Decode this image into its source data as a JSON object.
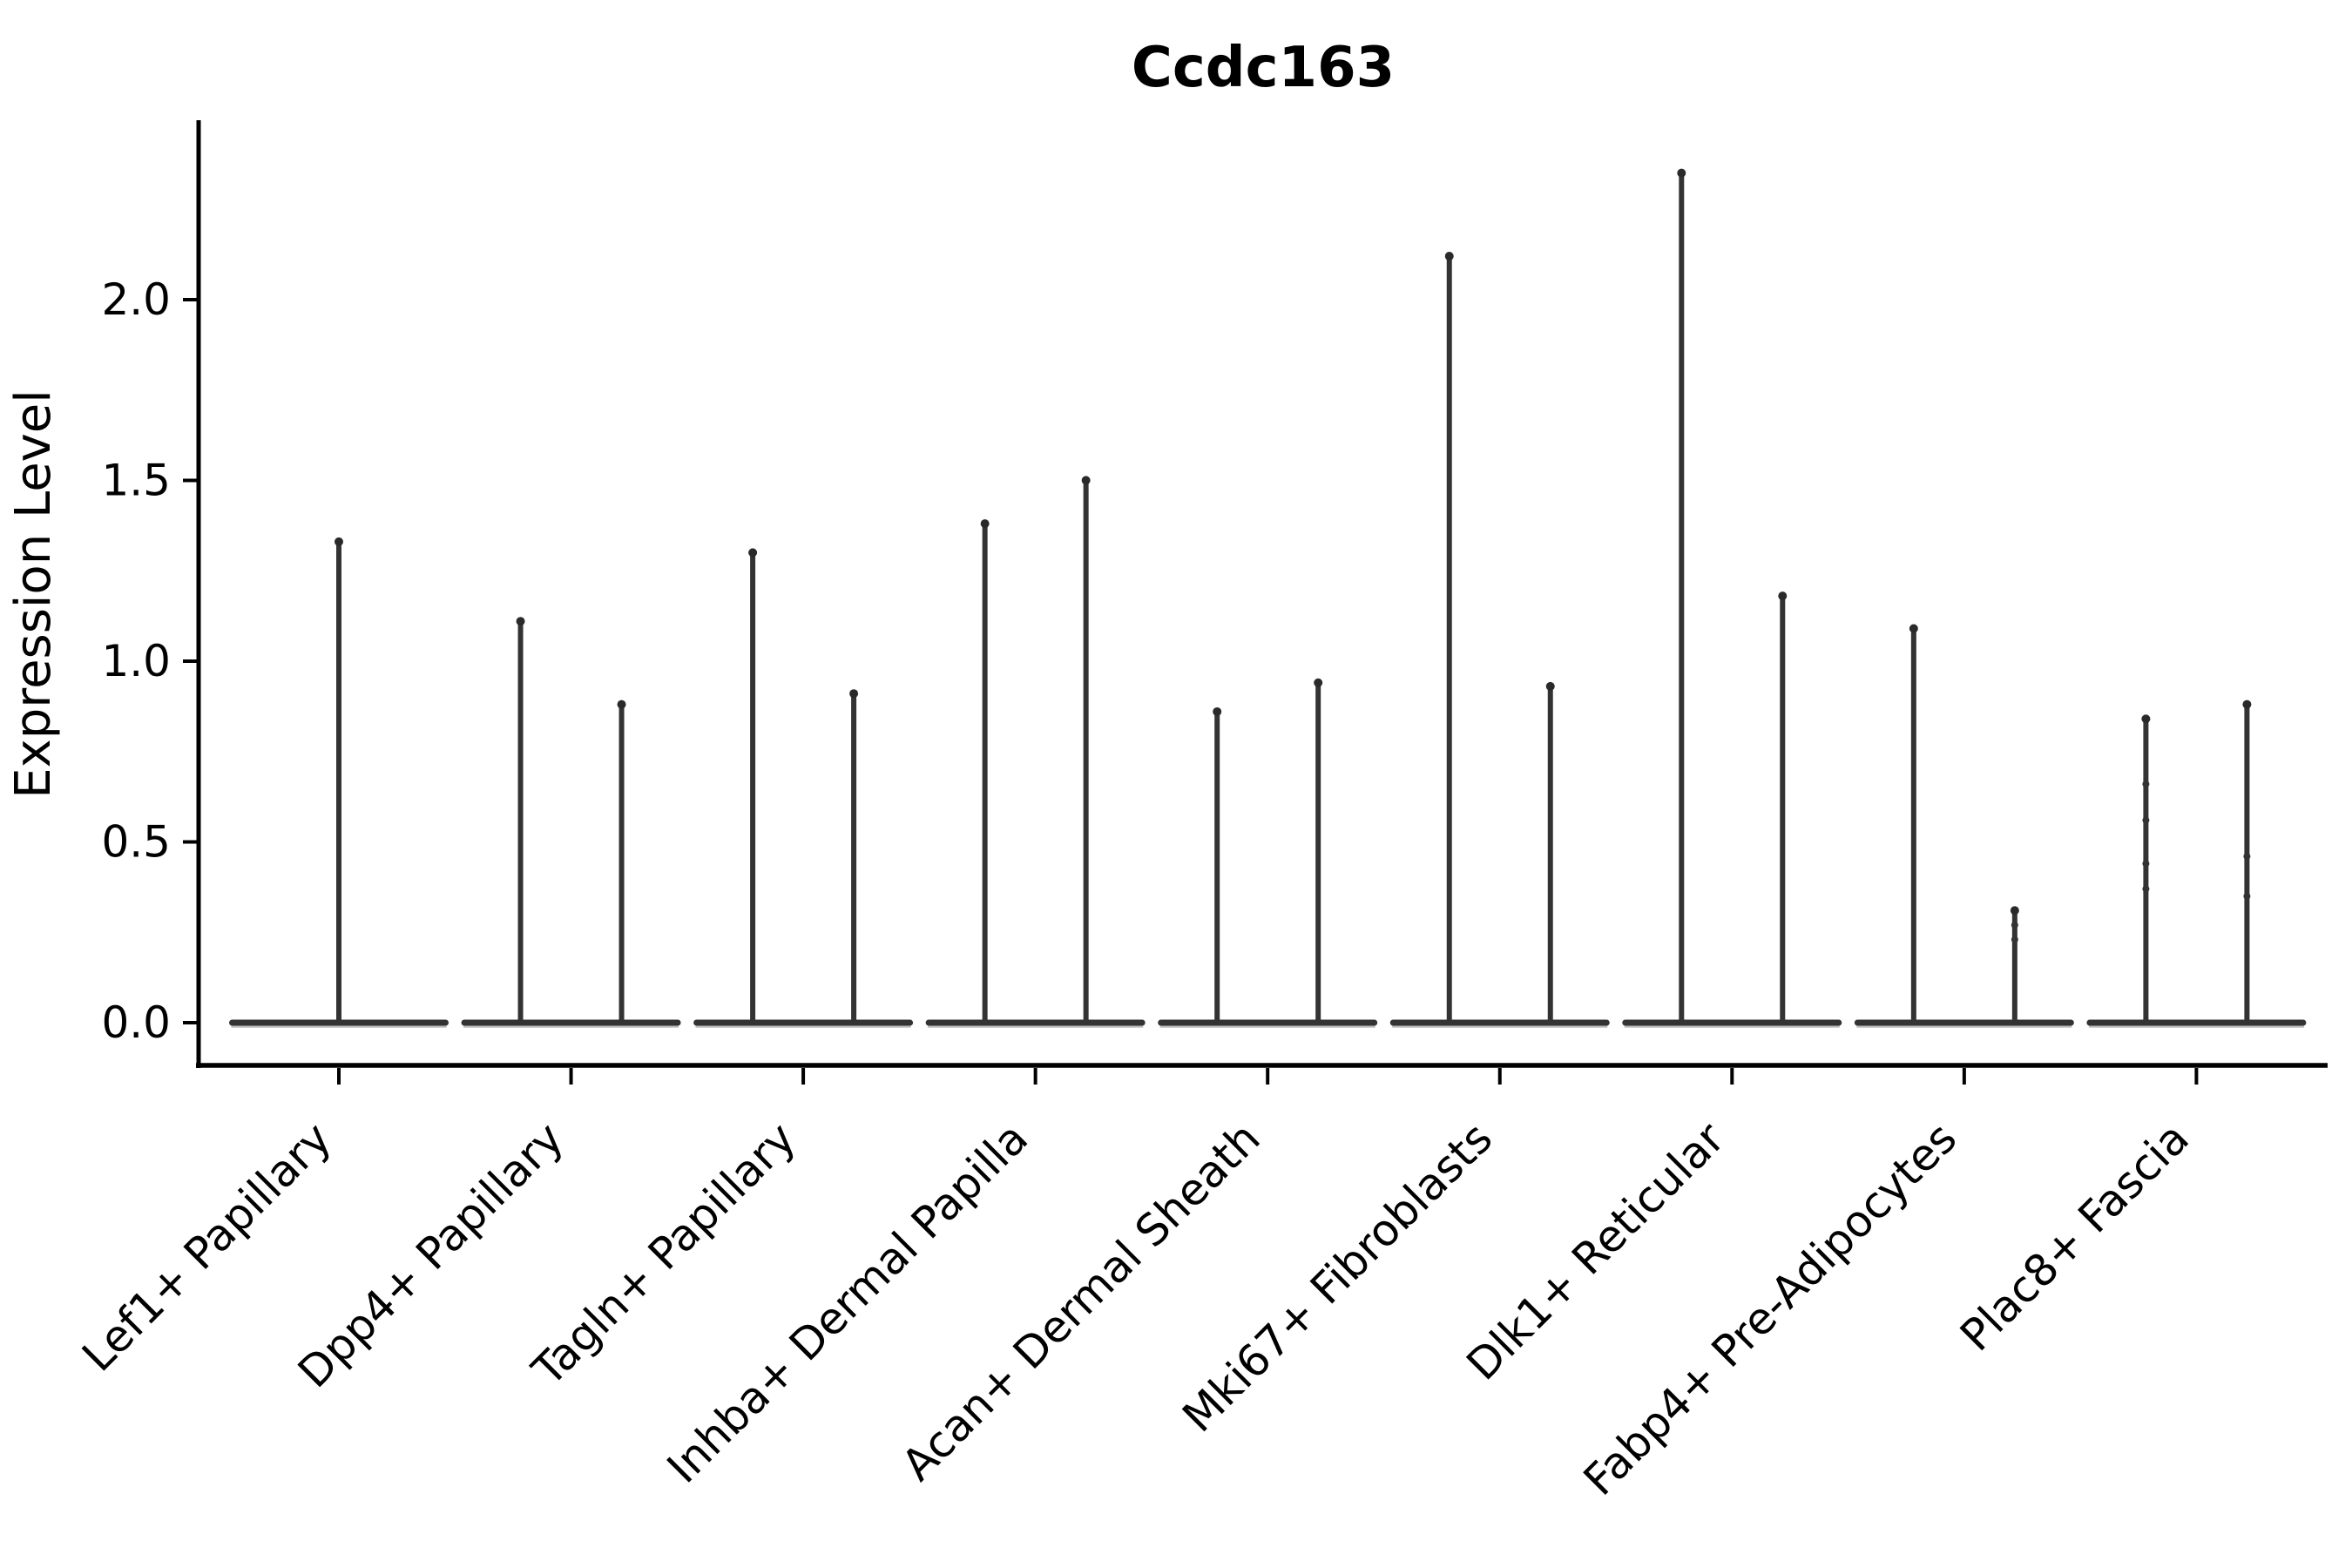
{
  "chart_data": {
    "type": "violin",
    "title": "Ccdc163",
    "ylabel": "Expression Level",
    "xlabel": "",
    "grid": false,
    "legend_position": "none",
    "ylim": [
      -0.12,
      2.49
    ],
    "ytick_labels": [
      "0.0",
      "0.5",
      "1.0",
      "1.5",
      "2.0"
    ],
    "ytick_values": [
      0.0,
      0.5,
      1.0,
      1.5,
      2.0
    ],
    "categories": [
      "Lef1+ Papillary",
      "Dpp4+ Papillary",
      "Tagln+ Papillary",
      "Inhba+ Dermal Papilla",
      "Acan+ Dermal Sheath",
      "Mki67+ Fibroblasts",
      "Dlk1+ Reticular",
      "Fabp4+ Pre-Adipocytes",
      "Plac8+ Fascia"
    ],
    "groups": [
      {
        "category": "Lef1+ Papillary",
        "violins": [
          {
            "position": "center",
            "baseline_value": 0.0,
            "max_expression": 1.34,
            "bumps": []
          }
        ]
      },
      {
        "category": "Dpp4+ Papillary",
        "violins": [
          {
            "position": "left",
            "baseline_value": 0.0,
            "max_expression": 1.12,
            "bumps": []
          },
          {
            "position": "right",
            "baseline_value": 0.0,
            "max_expression": 0.89,
            "bumps": []
          }
        ]
      },
      {
        "category": "Tagln+ Papillary",
        "violins": [
          {
            "position": "left",
            "baseline_value": 0.0,
            "max_expression": 1.31,
            "bumps": []
          },
          {
            "position": "right",
            "baseline_value": 0.0,
            "max_expression": 0.92,
            "bumps": []
          }
        ]
      },
      {
        "category": "Inhba+ Dermal Papilla",
        "violins": [
          {
            "position": "left",
            "baseline_value": 0.0,
            "max_expression": 1.39,
            "bumps": []
          },
          {
            "position": "right",
            "baseline_value": 0.0,
            "max_expression": 1.51,
            "bumps": []
          }
        ]
      },
      {
        "category": "Acan+ Dermal Sheath",
        "violins": [
          {
            "position": "left",
            "baseline_value": 0.0,
            "max_expression": 0.87,
            "bumps": []
          },
          {
            "position": "right",
            "baseline_value": 0.0,
            "max_expression": 0.95,
            "bumps": []
          }
        ]
      },
      {
        "category": "Mki67+ Fibroblasts",
        "violins": [
          {
            "position": "left",
            "baseline_value": 0.0,
            "max_expression": 2.13,
            "bumps": []
          },
          {
            "position": "right",
            "baseline_value": 0.0,
            "max_expression": 0.94,
            "bumps": []
          }
        ]
      },
      {
        "category": "Dlk1+ Reticular",
        "violins": [
          {
            "position": "left",
            "baseline_value": 0.0,
            "max_expression": 2.36,
            "bumps": []
          },
          {
            "position": "right",
            "baseline_value": 0.0,
            "max_expression": 1.19,
            "bumps": []
          }
        ]
      },
      {
        "category": "Fabp4+ Pre-Adipocytes",
        "violins": [
          {
            "position": "left",
            "baseline_value": 0.0,
            "max_expression": 1.1,
            "bumps": []
          },
          {
            "position": "right",
            "baseline_value": 0.0,
            "max_expression": 0.32,
            "bumps": [
              0.27,
              0.23
            ]
          }
        ]
      },
      {
        "category": "Plac8+ Fascia",
        "violins": [
          {
            "position": "left",
            "baseline_value": 0.0,
            "max_expression": 0.85,
            "bumps": [
              0.66,
              0.56,
              0.44,
              0.37
            ]
          },
          {
            "position": "right",
            "baseline_value": 0.0,
            "max_expression": 0.89,
            "bumps": [
              0.46,
              0.35
            ]
          }
        ]
      }
    ],
    "colors": {
      "violin_line": "#333333",
      "violin_knob": "#2a2a2a",
      "baseline_fringe": "#a8a8a8",
      "axis": "#000000",
      "background": "#ffffff"
    }
  }
}
